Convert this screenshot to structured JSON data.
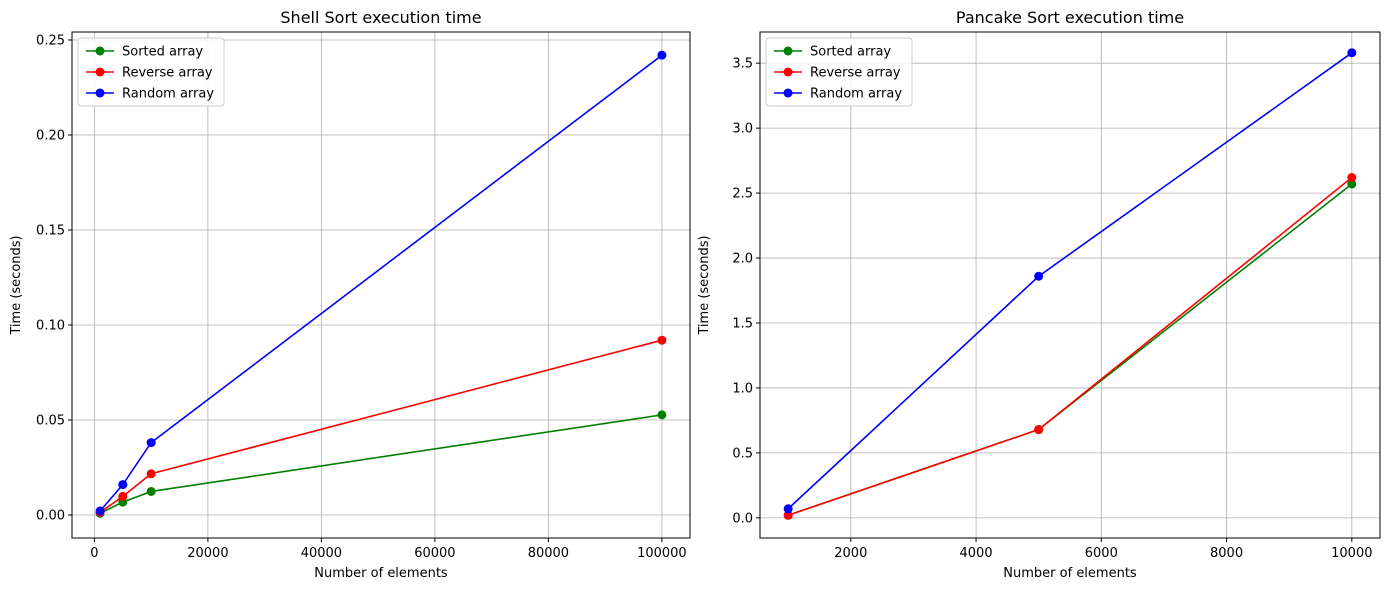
{
  "chart_data": [
    {
      "type": "line",
      "title": "Shell Sort execution time",
      "xlabel": "Number of elements",
      "ylabel": "Time (seconds)",
      "xlim": [
        -3950,
        104950
      ],
      "ylim": [
        -0.0121,
        0.2542
      ],
      "xticks": [
        0,
        20000,
        40000,
        60000,
        80000,
        100000
      ],
      "xtick_labels": [
        "0",
        "20000",
        "40000",
        "60000",
        "80000",
        "100000"
      ],
      "yticks": [
        0,
        0.05,
        0.1,
        0.15,
        0.2,
        0.25
      ],
      "ytick_labels": [
        "0.00",
        "0.05",
        "0.10",
        "0.15",
        "0.20",
        "0.25"
      ],
      "grid": true,
      "legend_position": "upper-left",
      "x": [
        1000,
        5000,
        10000,
        100000
      ],
      "series": [
        {
          "name": "Sorted array",
          "color": "#008000",
          "values": [
            0.0009,
            0.0068,
            0.0124,
            0.0527
          ]
        },
        {
          "name": "Reverse array",
          "color": "#ff0000",
          "values": [
            0.0014,
            0.0098,
            0.0217,
            0.092
          ]
        },
        {
          "name": "Random array",
          "color": "#0000ff",
          "values": [
            0.0021,
            0.016,
            0.0381,
            0.242
          ]
        }
      ]
    },
    {
      "type": "line",
      "title": "Pancake Sort execution time",
      "xlabel": "Number of elements",
      "ylabel": "Time (seconds)",
      "xlim": [
        550,
        10450
      ],
      "ylim": [
        -0.155,
        3.74
      ],
      "xticks": [
        2000,
        4000,
        6000,
        8000,
        10000
      ],
      "xtick_labels": [
        "2000",
        "4000",
        "6000",
        "8000",
        "10000"
      ],
      "yticks": [
        0,
        0.5,
        1.0,
        1.5,
        2.0,
        2.5,
        3.0,
        3.5
      ],
      "ytick_labels": [
        "0.0",
        "0.5",
        "1.0",
        "1.5",
        "2.0",
        "2.5",
        "3.0",
        "3.5"
      ],
      "grid": true,
      "legend_position": "upper-left",
      "x": [
        1000,
        5000,
        10000
      ],
      "series": [
        {
          "name": "Sorted array",
          "color": "#008000",
          "values": [
            0.02,
            0.68,
            2.57
          ]
        },
        {
          "name": "Reverse array",
          "color": "#ff0000",
          "values": [
            0.02,
            0.68,
            2.62
          ]
        },
        {
          "name": "Random array",
          "color": "#0000ff",
          "values": [
            0.07,
            1.86,
            3.58
          ]
        }
      ]
    }
  ]
}
